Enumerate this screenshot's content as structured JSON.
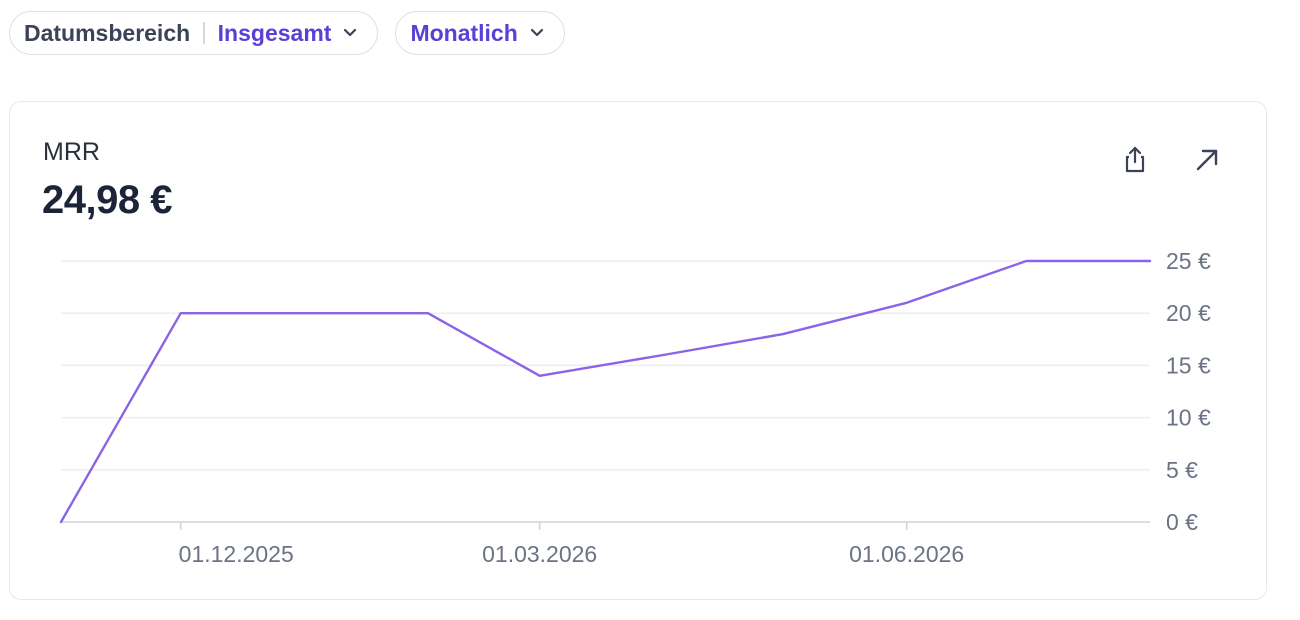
{
  "filters": {
    "date_range_label": "Datumsbereich",
    "date_range_value": "Insgesamt",
    "interval_value": "Monatlich"
  },
  "card": {
    "title": "MRR",
    "value": "24,98 €"
  },
  "icons": {
    "share": "share-icon",
    "expand": "arrow-up-right-icon",
    "chevron": "chevron-down-icon"
  },
  "colors": {
    "accent": "#5b3fd6",
    "line": "#8b63e6",
    "grid": "#eceef1",
    "axis": "#cfd4dc"
  },
  "chart_data": {
    "type": "line",
    "x": [
      "2025-11-01",
      "2025-12-01",
      "2026-01-01",
      "2026-02-01",
      "2026-03-01",
      "2026-04-01",
      "2026-05-01",
      "2026-06-01",
      "2026-07-01",
      "2026-08-01"
    ],
    "series": [
      {
        "values": [
          0,
          20,
          20,
          20,
          14,
          16,
          18,
          21,
          25,
          25
        ]
      }
    ],
    "ylim": [
      0,
      25
    ],
    "y_ticks": [
      "0 €",
      "5 €",
      "10 €",
      "15 €",
      "20 €",
      "25 €"
    ],
    "y_tick_values": [
      0,
      5,
      10,
      15,
      20,
      25
    ],
    "x_tick_labels": [
      "01.12.2025",
      "01.03.2026",
      "01.06.2026"
    ],
    "x_tick_dates": [
      "2025-12-01",
      "2026-03-01",
      "2026-06-01"
    ],
    "grid": true,
    "y_axis_side": "right",
    "legend": "none"
  }
}
